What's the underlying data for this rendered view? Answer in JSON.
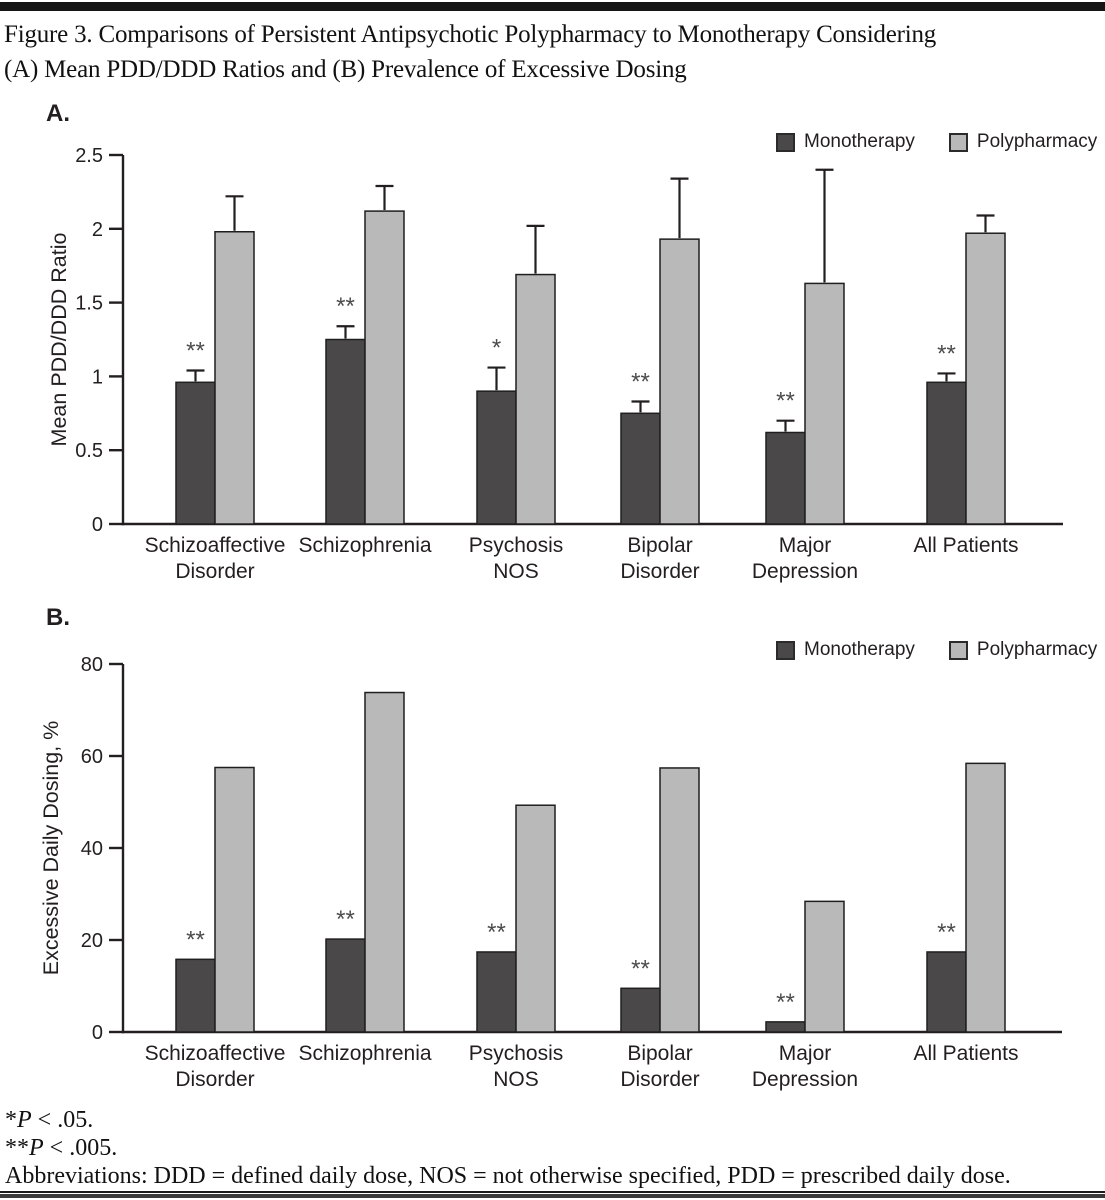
{
  "title": {
    "line1": "Figure 3. Comparisons of Persistent Antipsychotic Polypharmacy to Monotherapy Considering",
    "line2": "(A) Mean PDD/DDD Ratios and (B) Prevalence of Excessive Dosing"
  },
  "legend": {
    "items": [
      {
        "label": "Monotherapy",
        "color": "#4a4848"
      },
      {
        "label": "Polypharmacy",
        "color": "#b9b9b9"
      }
    ]
  },
  "colors": {
    "monotherapy": "#4a4848",
    "polypharmacy": "#b9b9b9",
    "bar_border": "#1f1f1f",
    "axis": "#231f20",
    "text": "#231f20",
    "asterisk": "#4c4c4c"
  },
  "footnotes": {
    "note1": {
      "stars": "*",
      "pvar": "P",
      "rest": " < .05."
    },
    "note2": {
      "stars": "**",
      "pvar": "P",
      "rest": " < .005."
    },
    "abbreviations": "Abbreviations: DDD = defined daily dose, NOS = not otherwise specified, PDD = prescribed daily dose."
  },
  "chart_data": [
    {
      "id": "A",
      "type": "bar",
      "panel_label": "A.",
      "ylabel": "Mean PDD/DDD Ratio",
      "ylim": [
        0,
        2.5
      ],
      "yticks": [
        0,
        0.5,
        1,
        1.5,
        2,
        2.5
      ],
      "ytick_labels": [
        "0",
        "0.5",
        "1",
        "1.5",
        "2",
        "2.5"
      ],
      "grid": false,
      "legend_position": "top-right",
      "categories": [
        "Schizoaffective Disorder",
        "Schizophrenia",
        "Psychosis NOS",
        "Bipolar Disorder",
        "Major Depression",
        "All Patients"
      ],
      "category_lines": [
        [
          "Schizoaffective",
          "Disorder"
        ],
        [
          "Schizophrenia"
        ],
        [
          "Psychosis",
          "NOS"
        ],
        [
          "Bipolar",
          "Disorder"
        ],
        [
          "Major",
          "Depression"
        ],
        [
          "All Patients"
        ]
      ],
      "series": [
        {
          "name": "Monotherapy",
          "values": [
            0.96,
            1.25,
            0.9,
            0.75,
            0.62,
            0.96
          ],
          "error_top": [
            1.04,
            1.34,
            1.06,
            0.83,
            0.7,
            1.02
          ]
        },
        {
          "name": "Polypharmacy",
          "values": [
            1.98,
            2.12,
            1.69,
            1.93,
            1.63,
            1.97
          ],
          "error_top": [
            2.22,
            2.29,
            2.02,
            2.34,
            2.4,
            2.09
          ]
        }
      ],
      "significance": [
        "**",
        "**",
        "*",
        "**",
        "**",
        "**"
      ]
    },
    {
      "id": "B",
      "type": "bar",
      "panel_label": "B.",
      "ylabel": "Excessive Daily Dosing, %",
      "ylim": [
        0,
        80
      ],
      "yticks": [
        0,
        20,
        40,
        60,
        80
      ],
      "ytick_labels": [
        "0",
        "20",
        "40",
        "60",
        "80"
      ],
      "grid": false,
      "legend_position": "top-right",
      "categories": [
        "Schizoaffective Disorder",
        "Schizophrenia",
        "Psychosis NOS",
        "Bipolar Disorder",
        "Major Depression",
        "All Patients"
      ],
      "category_lines": [
        [
          "Schizoaffective",
          "Disorder"
        ],
        [
          "Schizophrenia"
        ],
        [
          "Psychosis",
          "NOS"
        ],
        [
          "Bipolar",
          "Disorder"
        ],
        [
          "Major",
          "Depression"
        ],
        [
          "All Patients"
        ]
      ],
      "series": [
        {
          "name": "Monotherapy",
          "values": [
            15.8,
            20.2,
            17.4,
            9.5,
            2.2,
            17.4
          ]
        },
        {
          "name": "Polypharmacy",
          "values": [
            57.5,
            73.8,
            49.3,
            57.4,
            28.4,
            58.4
          ]
        }
      ],
      "significance": [
        "**",
        "**",
        "**",
        "**",
        "**",
        "**"
      ]
    }
  ]
}
